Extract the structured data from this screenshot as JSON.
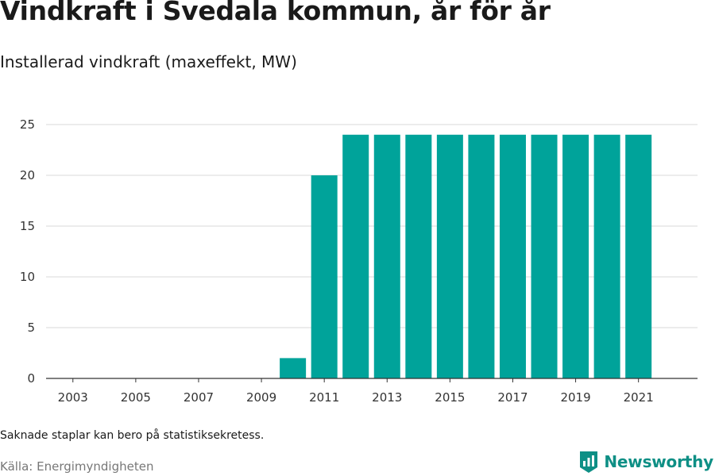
{
  "header": {
    "title": "Vindkraft i Svedala kommun, år för år",
    "subtitle": "Installerad vindkraft (maxeffekt, MW)"
  },
  "footer": {
    "note": "Saknade staplar kan bero på statistiksekretess.",
    "source": "Källa: Energimyndigheten",
    "brand": "Newsworthy"
  },
  "colors": {
    "bar": "#00a39a",
    "grid": "#d9d9d9",
    "axis": "#333333",
    "brand": "#0e8f85"
  },
  "chart_data": {
    "type": "bar",
    "title": "Vindkraft i Svedala kommun, år för år",
    "subtitle": "Installerad vindkraft (maxeffekt, MW)",
    "xlabel": "",
    "ylabel": "",
    "categories": [
      "2003",
      "2004",
      "2005",
      "2006",
      "2007",
      "2008",
      "2009",
      "2010",
      "2011",
      "2012",
      "2013",
      "2014",
      "2015",
      "2016",
      "2017",
      "2018",
      "2019",
      "2020",
      "2021"
    ],
    "x_tick_labels": [
      "2003",
      "2005",
      "2007",
      "2009",
      "2011",
      "2013",
      "2015",
      "2017",
      "2019",
      "2021"
    ],
    "values": [
      null,
      null,
      null,
      null,
      null,
      null,
      null,
      2,
      20,
      24,
      24,
      24,
      24,
      24,
      24,
      24,
      24,
      24,
      24
    ],
    "ylim": [
      0,
      25
    ],
    "y_ticks": [
      0,
      5,
      10,
      15,
      20,
      25
    ],
    "grid": true,
    "legend": "none"
  }
}
